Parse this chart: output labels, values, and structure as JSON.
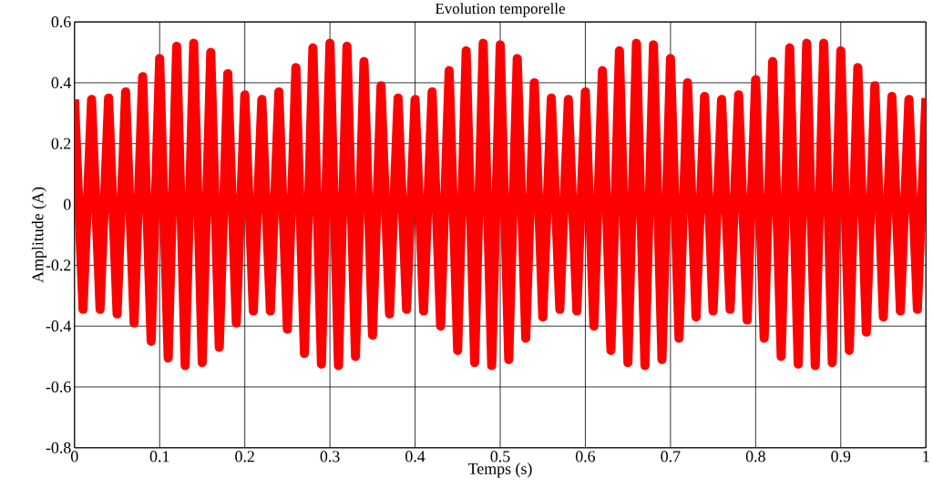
{
  "chart_data": {
    "type": "line",
    "title": "Evolution temporelle",
    "xlabel": "Temps (s)",
    "ylabel": "Amplitude (A)",
    "x": [
      0,
      0.01,
      0.02,
      0.03,
      0.04,
      0.05,
      0.06,
      0.07,
      0.08,
      0.09,
      0.1,
      0.11,
      0.12,
      0.13,
      0.14,
      0.15,
      0.16,
      0.17,
      0.18,
      0.19,
      0.2,
      0.21,
      0.22,
      0.23,
      0.24,
      0.25,
      0.26,
      0.27,
      0.28,
      0.29,
      0.3,
      0.31,
      0.32,
      0.33,
      0.34,
      0.35,
      0.36,
      0.37,
      0.38,
      0.39,
      0.4,
      0.41,
      0.42,
      0.43,
      0.44,
      0.45,
      0.46,
      0.47,
      0.48,
      0.49,
      0.5,
      0.51,
      0.52,
      0.53,
      0.54,
      0.55,
      0.56,
      0.57,
      0.58,
      0.59,
      0.6,
      0.61,
      0.62,
      0.63,
      0.64,
      0.65,
      0.66,
      0.67,
      0.68,
      0.69,
      0.7,
      0.71,
      0.72,
      0.73,
      0.74,
      0.75,
      0.76,
      0.77,
      0.78,
      0.79,
      0.8,
      0.81,
      0.82,
      0.83,
      0.84,
      0.85,
      0.86,
      0.87,
      0.88,
      0.89,
      0.9,
      0.91,
      0.92,
      0.93,
      0.94,
      0.95,
      0.96,
      0.97,
      0.98,
      0.99,
      1
    ],
    "series": [
      {
        "color": "#ff0000",
        "values": [
          0.345,
          -0.345,
          0.345,
          -0.345,
          0.35,
          -0.36,
          0.37,
          -0.39,
          0.42,
          -0.45,
          0.48,
          -0.505,
          0.52,
          -0.53,
          0.53,
          -0.52,
          0.5,
          -0.47,
          0.43,
          -0.39,
          0.36,
          -0.35,
          0.345,
          -0.35,
          0.37,
          -0.41,
          0.45,
          -0.49,
          0.515,
          -0.525,
          0.53,
          -0.53,
          0.52,
          -0.5,
          0.47,
          -0.43,
          0.39,
          -0.36,
          0.35,
          -0.345,
          0.345,
          -0.35,
          0.37,
          -0.4,
          0.44,
          -0.48,
          0.505,
          -0.52,
          0.53,
          -0.53,
          0.525,
          -0.51,
          0.48,
          -0.44,
          0.4,
          -0.37,
          0.35,
          -0.345,
          0.345,
          -0.35,
          0.37,
          -0.4,
          0.44,
          -0.48,
          0.505,
          -0.52,
          0.53,
          -0.53,
          0.525,
          -0.51,
          0.48,
          -0.44,
          0.4,
          -0.37,
          0.355,
          -0.35,
          0.345,
          -0.345,
          0.36,
          -0.38,
          0.41,
          -0.44,
          0.47,
          -0.5,
          0.515,
          -0.525,
          0.53,
          -0.53,
          0.53,
          -0.52,
          0.505,
          -0.48,
          0.45,
          -0.42,
          0.39,
          -0.37,
          0.355,
          -0.35,
          0.345,
          -0.345,
          0.35
        ]
      }
    ],
    "xlim": [
      0,
      1
    ],
    "ylim": [
      -0.8,
      0.6
    ],
    "xticks": [
      0,
      0.1,
      0.2,
      0.3,
      0.4,
      0.5,
      0.6,
      0.7,
      0.8,
      0.9,
      {
        "value": 1,
        "label": "1"
      }
    ],
    "yticks": [
      -0.8,
      -0.6,
      -0.4,
      -0.2,
      0,
      0.2,
      0.4,
      0.6
    ],
    "grid": true,
    "line_style": "solid",
    "marker": "none"
  }
}
